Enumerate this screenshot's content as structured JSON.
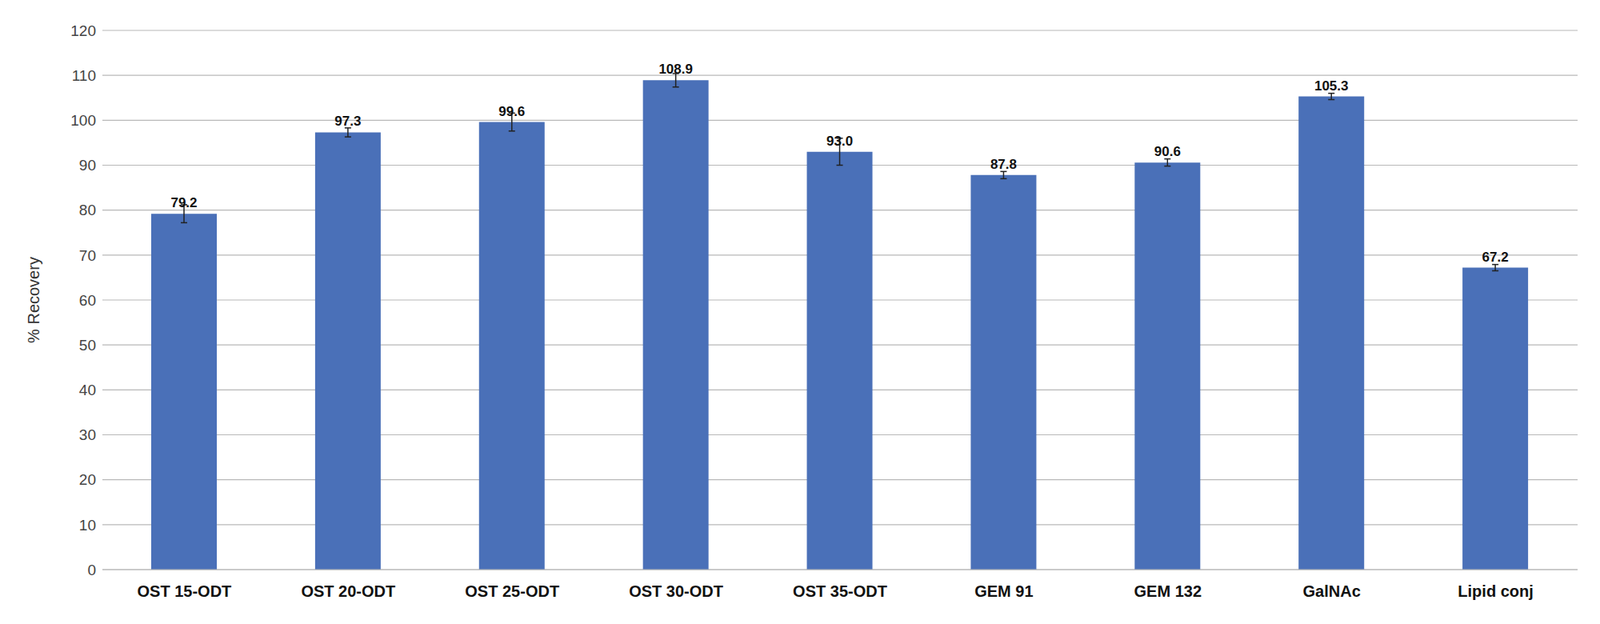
{
  "chart_data": {
    "type": "bar",
    "y_label": "% Recovery",
    "categories": [
      "OST 15-ODT",
      "OST 20-ODT",
      "OST 25-ODT",
      "OST 30-ODT",
      "OST 35-ODT",
      "GEM 91",
      "GEM 132",
      "GalNAc",
      "Lipid conj"
    ],
    "values": [
      79.2,
      97.3,
      99.6,
      108.9,
      93.0,
      87.8,
      90.6,
      105.3,
      67.2
    ],
    "value_labels": [
      "79.2",
      "97.3",
      "99.6",
      "108.9",
      "93.0",
      "87.8",
      "90.6",
      "105.3",
      "67.2"
    ],
    "errors": [
      2,
      1,
      2,
      1.5,
      3,
      0.8,
      0.8,
      0.7,
      0.7
    ],
    "color": "#4a70b8",
    "ylim": [
      0,
      120
    ],
    "yticks": [
      0,
      10,
      20,
      30,
      40,
      50,
      60,
      70,
      80,
      90,
      100,
      110,
      120
    ],
    "grid": true,
    "data_labels": true
  }
}
